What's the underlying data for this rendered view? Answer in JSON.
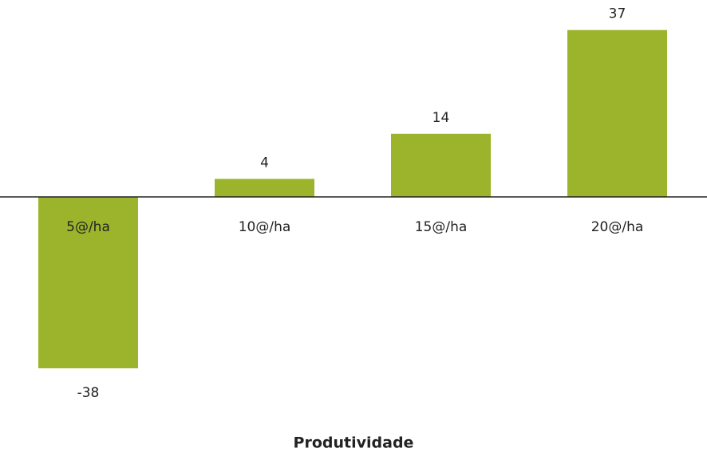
{
  "chart_data": {
    "type": "bar",
    "x_label": "Produtividade",
    "categories": [
      "5@/ha",
      "10@/ha",
      "15@/ha",
      "20@/ha"
    ],
    "values": [
      -38,
      4,
      14,
      37
    ],
    "color": "#9cb42b"
  }
}
